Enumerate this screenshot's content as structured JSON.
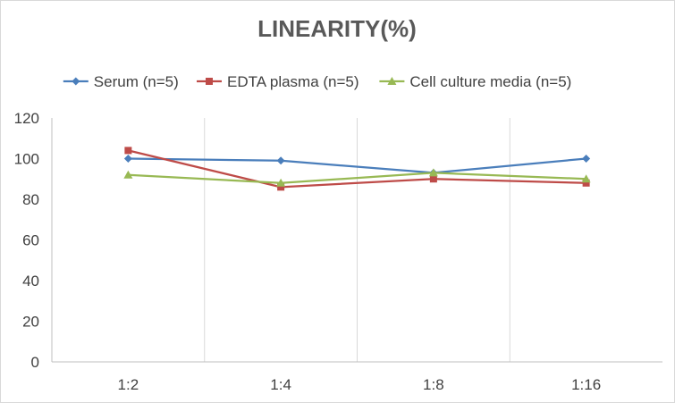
{
  "chart_data": {
    "type": "line",
    "title": "LINEARITY(%)",
    "xlabel": "",
    "ylabel": "",
    "categories": [
      "1:2",
      "1:4",
      "1:8",
      "1:16"
    ],
    "ylim": [
      0,
      120
    ],
    "yticks": [
      "0",
      "20",
      "40",
      "60",
      "80",
      "100",
      "120"
    ],
    "grid": "vertical",
    "legend_position": "top",
    "series": [
      {
        "name": "Serum (n=5)",
        "values": [
          100,
          99,
          93,
          100
        ],
        "color": "#4a7ebb",
        "marker": "diamond"
      },
      {
        "name": "EDTA plasma (n=5)",
        "values": [
          104,
          86,
          90,
          88
        ],
        "color": "#be4b48",
        "marker": "square"
      },
      {
        "name": "Cell culture media (n=5)",
        "values": [
          92,
          88,
          93,
          90
        ],
        "color": "#98b954",
        "marker": "triangle"
      }
    ]
  }
}
